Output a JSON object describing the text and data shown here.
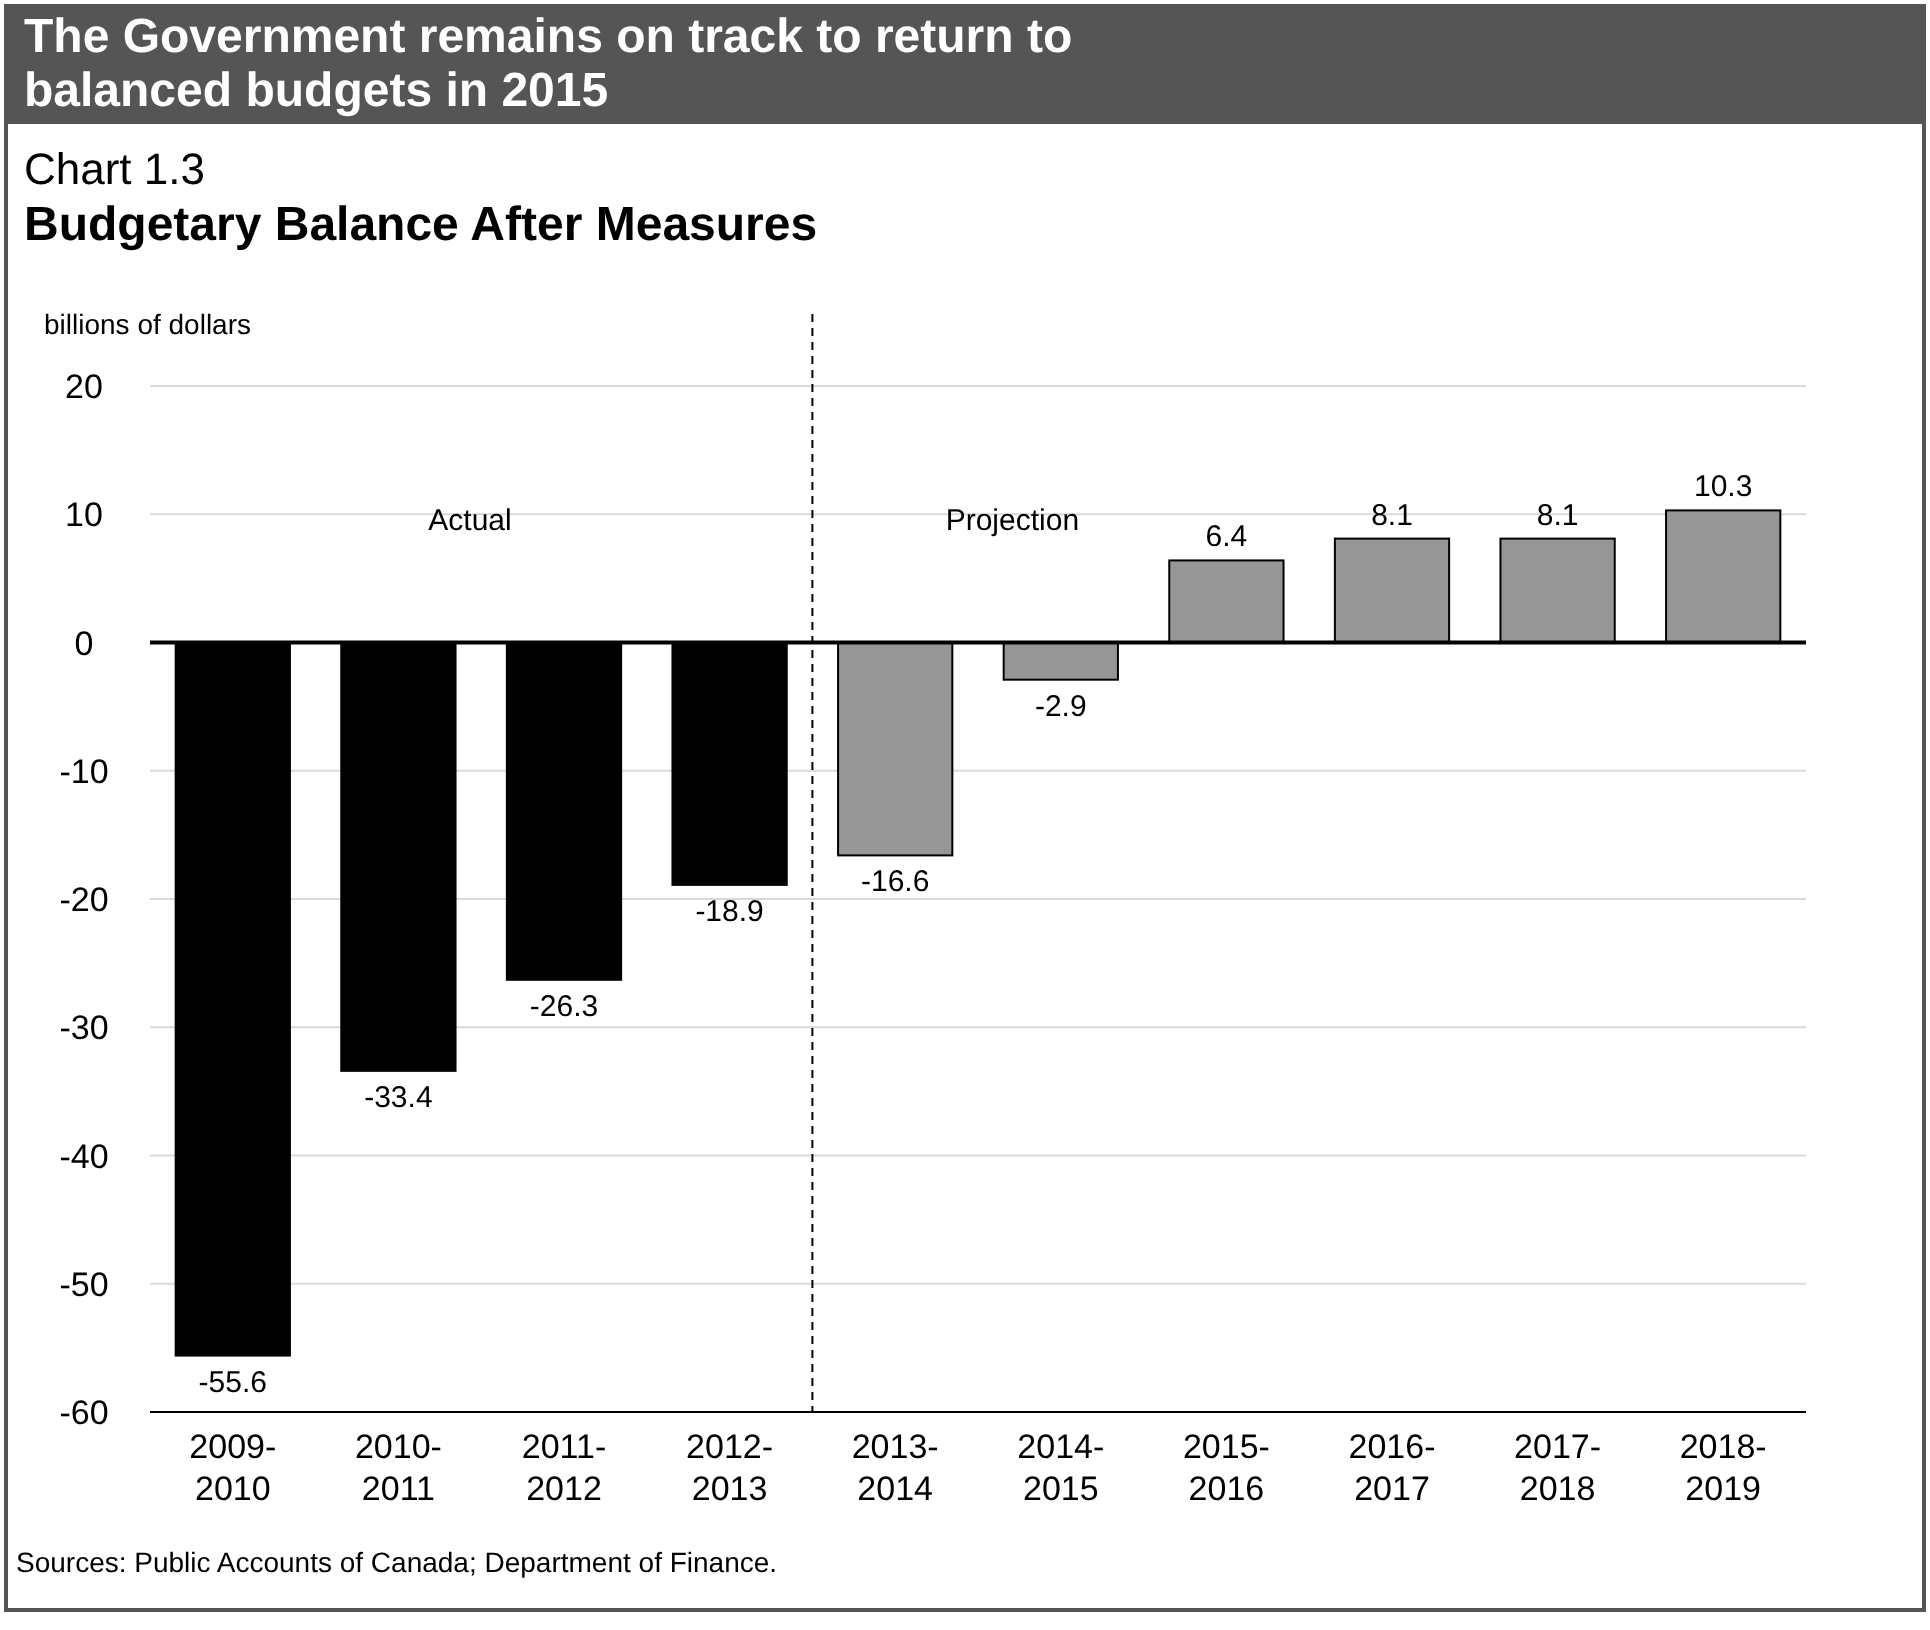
{
  "chart_data": {
    "type": "bar",
    "title": "Budgetary Balance After Measures",
    "subtitle": "Chart 1.3",
    "ylabel": "billions of dollars",
    "categories": [
      "2009-2010",
      "2010-2011",
      "2011-2012",
      "2012-2013",
      "2013-2014",
      "2014-2015",
      "2015-2016",
      "2016-2017",
      "2017-2018",
      "2018-2019"
    ],
    "values": [
      -55.6,
      -33.4,
      -26.3,
      -18.9,
      -16.6,
      -2.9,
      6.4,
      8.1,
      8.1,
      10.3
    ],
    "colors": [
      "#000000",
      "#000000",
      "#000000",
      "#000000",
      "#969696",
      "#969696",
      "#969696",
      "#969696",
      "#969696",
      "#969696"
    ],
    "data_labels": true,
    "ylim": [
      -60,
      20
    ],
    "yticks": [
      -60,
      -50,
      -40,
      -30,
      -20,
      -10,
      0,
      10,
      20
    ],
    "grid": "y",
    "annotations": [
      "The Government remains on track to return to balanced budgets in 2015",
      "Actual",
      "Projection",
      "Sources: Public Accounts of Canada; Department of Finance."
    ]
  }
}
